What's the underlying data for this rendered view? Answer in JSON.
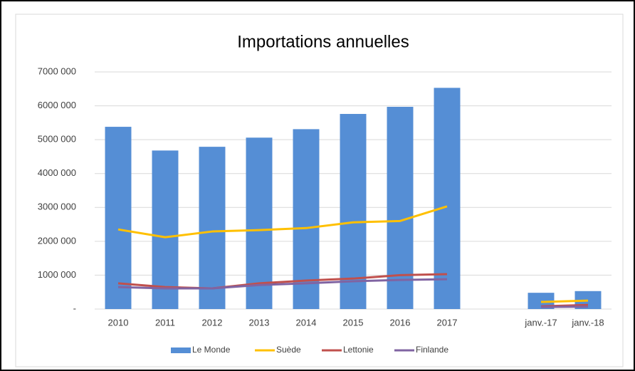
{
  "chart_data": {
    "type": "combo",
    "title": "Importations annuelles",
    "categories": [
      "2010",
      "2011",
      "2012",
      "2013",
      "2014",
      "2015",
      "2016",
      "2017",
      null,
      "janv.-17",
      "janv.-18"
    ],
    "series": [
      {
        "name": "Le Monde",
        "type": "bar",
        "color": "#558ed5",
        "values": [
          5380000,
          4680000,
          4790000,
          5060000,
          5310000,
          5760000,
          5970000,
          6530000,
          null,
          480000,
          530000
        ]
      },
      {
        "name": "Suède",
        "type": "line",
        "color": "#ffc000",
        "values": [
          2350000,
          2120000,
          2290000,
          2330000,
          2390000,
          2560000,
          2600000,
          3030000,
          null,
          210000,
          250000
        ]
      },
      {
        "name": "Lettonie",
        "type": "line",
        "color": "#c0504d",
        "values": [
          760000,
          650000,
          610000,
          760000,
          840000,
          900000,
          1000000,
          1030000,
          null,
          80000,
          120000
        ]
      },
      {
        "name": "Finlande",
        "type": "line",
        "color": "#8064a2",
        "values": [
          650000,
          610000,
          610000,
          710000,
          760000,
          820000,
          860000,
          880000,
          null,
          60000,
          70000
        ]
      }
    ],
    "ylim": [
      0,
      7000000
    ],
    "yticks": [
      {
        "value": 0,
        "label": "-"
      },
      {
        "value": 1000000,
        "label": "1000 000"
      },
      {
        "value": 2000000,
        "label": "2000 000"
      },
      {
        "value": 3000000,
        "label": "3000 000"
      },
      {
        "value": 4000000,
        "label": "4000 000"
      },
      {
        "value": 5000000,
        "label": "5000 000"
      },
      {
        "value": 6000000,
        "label": "6000 000"
      },
      {
        "value": 7000000,
        "label": "7000 000"
      }
    ],
    "grid": true,
    "legend": "bottom"
  }
}
